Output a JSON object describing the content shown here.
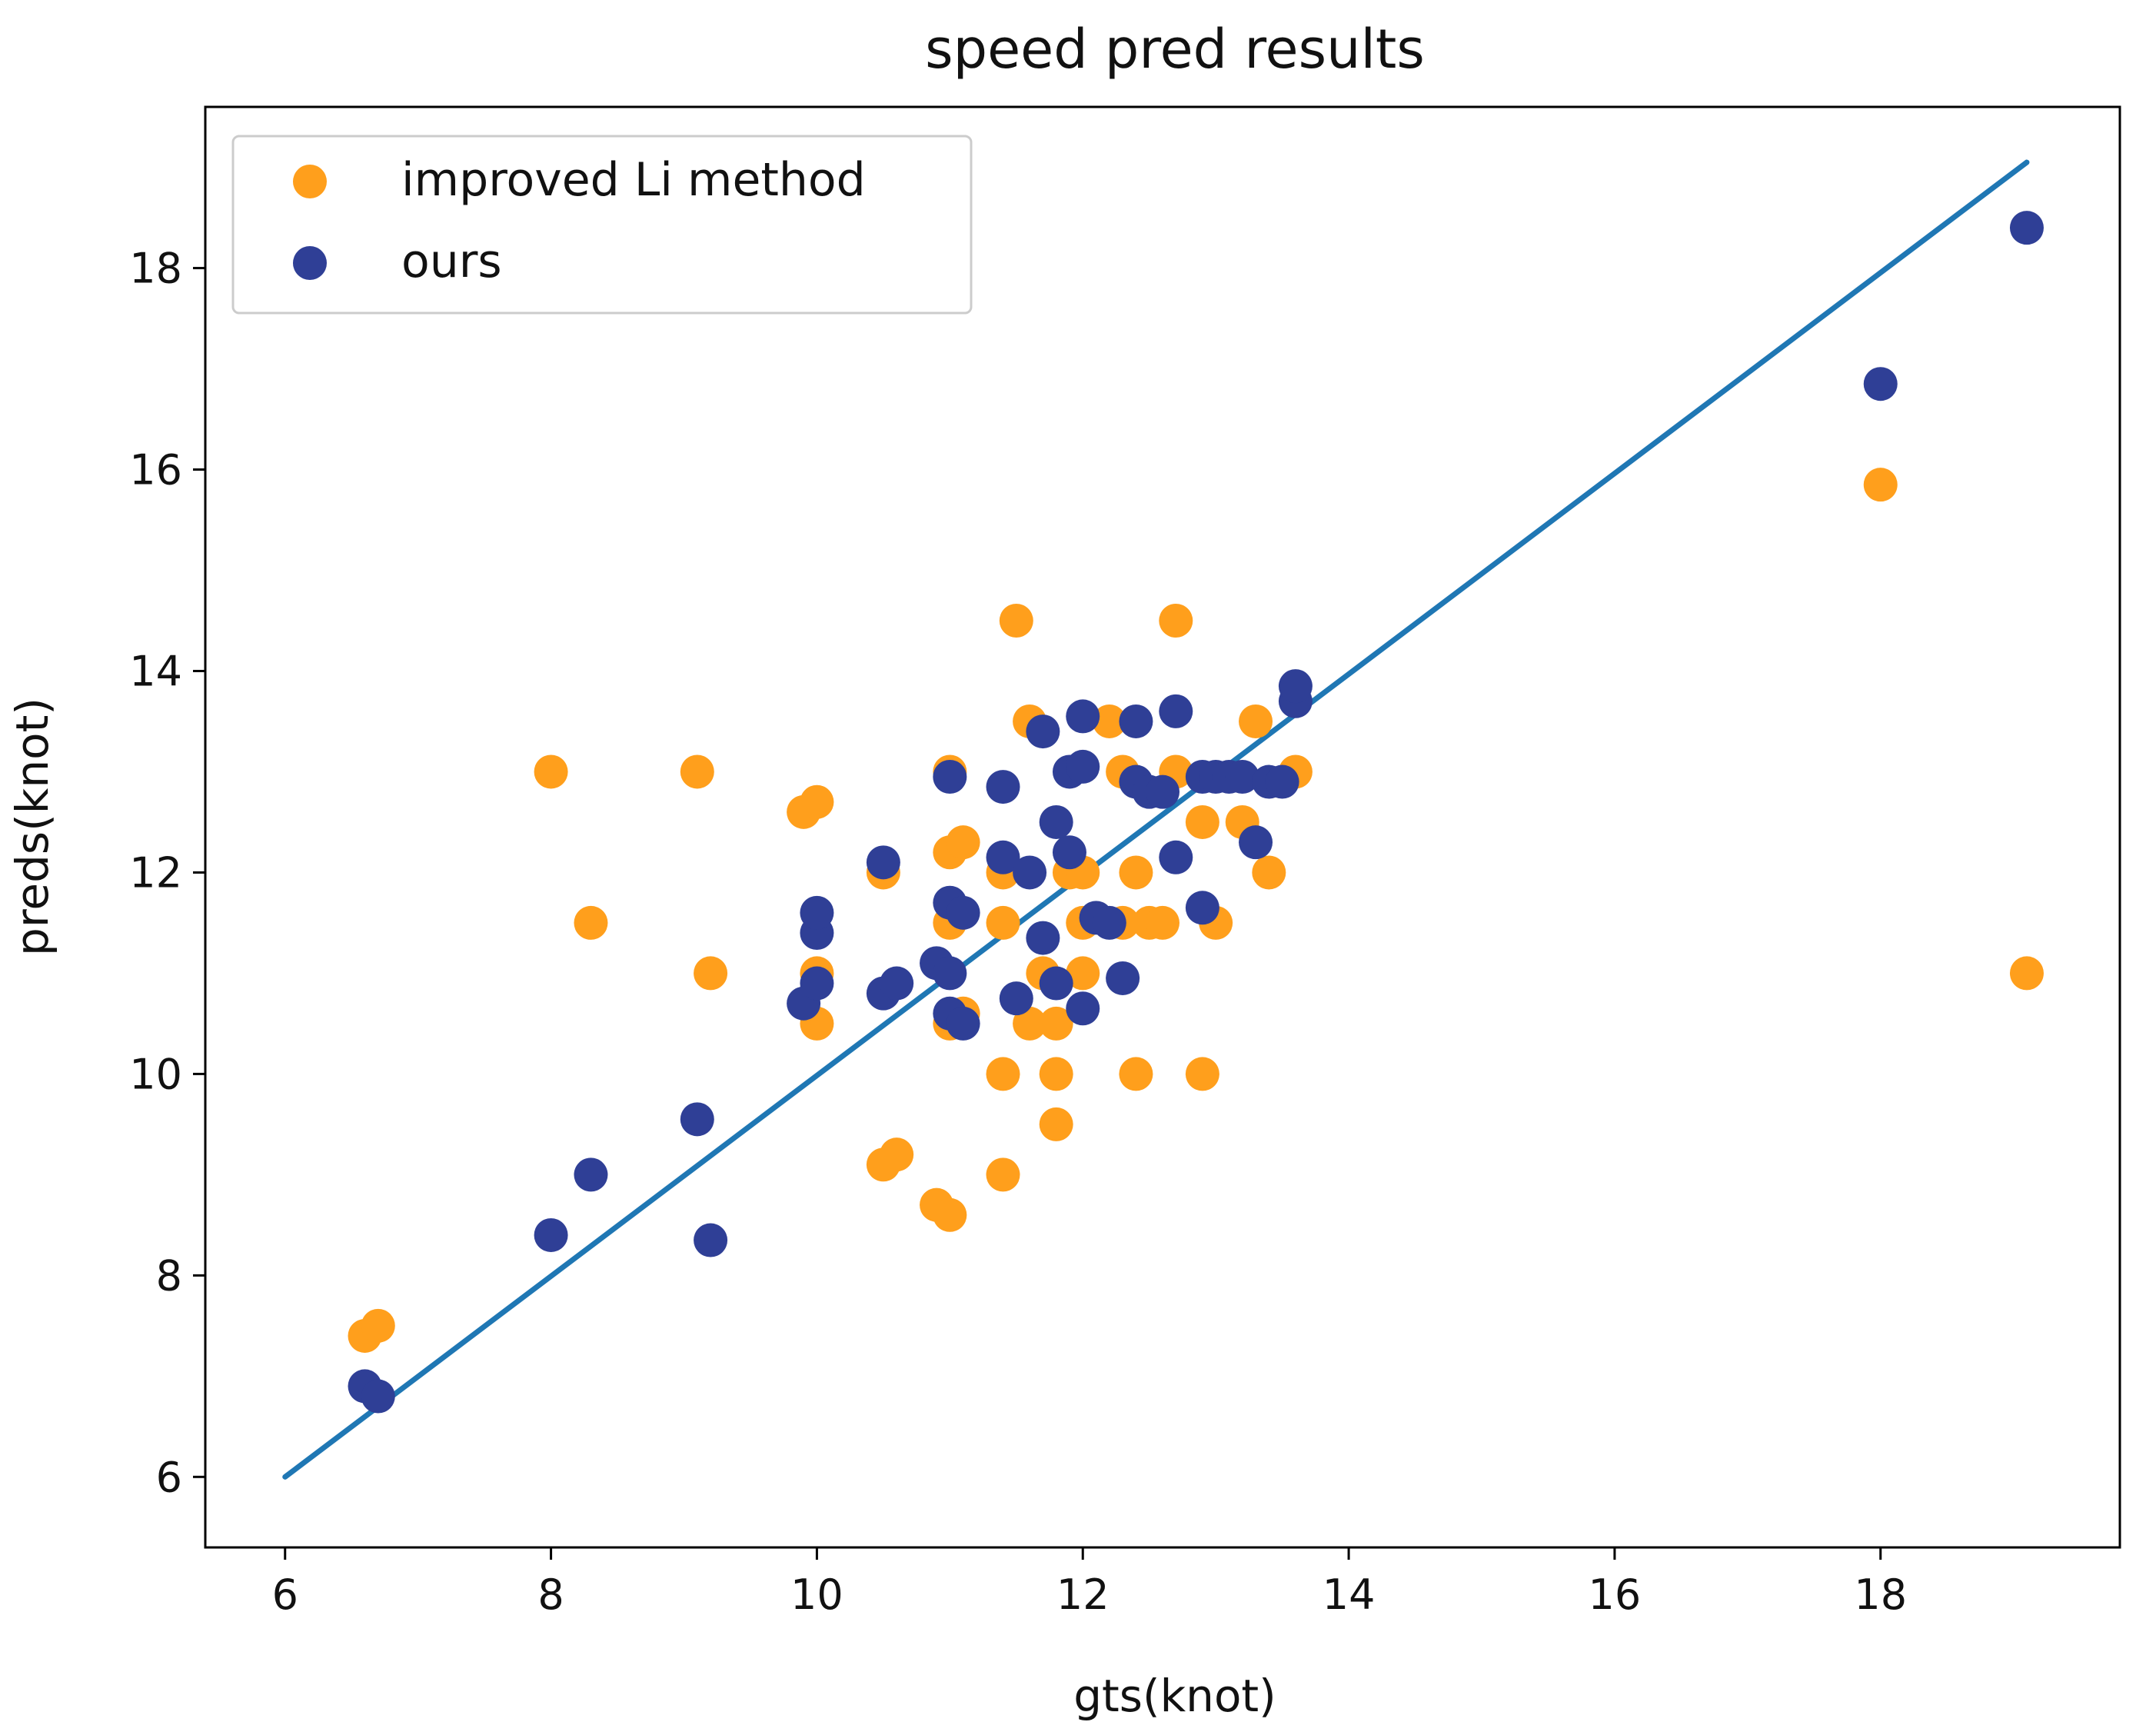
{
  "chart_data": {
    "type": "scatter",
    "title": "speed pred results",
    "xlabel": "gts(knot)",
    "ylabel": "preds(knot)",
    "xlim": [
      5.4,
      19.8
    ],
    "ylim": [
      5.3,
      19.6
    ],
    "xticks": [
      6,
      8,
      10,
      12,
      14,
      16,
      18
    ],
    "yticks": [
      6,
      8,
      10,
      12,
      14,
      16,
      18
    ],
    "grid": false,
    "legend_position": "top-left",
    "reference_line": {
      "x": [
        6,
        19.1
      ],
      "y": [
        6,
        19.05
      ],
      "color": "#1f77b4"
    },
    "series": [
      {
        "name": "improved Li method",
        "color": "#ff9f1c",
        "points": [
          [
            6.6,
            7.4
          ],
          [
            6.7,
            7.5
          ],
          [
            8.0,
            13.0
          ],
          [
            8.3,
            11.5
          ],
          [
            9.1,
            13.0
          ],
          [
            9.2,
            11.0
          ],
          [
            9.9,
            12.6
          ],
          [
            10.0,
            12.7
          ],
          [
            10.0,
            11.0
          ],
          [
            10.0,
            10.5
          ],
          [
            10.5,
            9.1
          ],
          [
            10.6,
            9.2
          ],
          [
            10.5,
            12.0
          ],
          [
            10.9,
            8.7
          ],
          [
            11.0,
            8.6
          ],
          [
            11.0,
            13.0
          ],
          [
            11.0,
            12.2
          ],
          [
            11.1,
            12.3
          ],
          [
            11.0,
            11.5
          ],
          [
            11.0,
            10.5
          ],
          [
            11.1,
            10.6
          ],
          [
            11.4,
            9.0
          ],
          [
            11.4,
            10.0
          ],
          [
            11.4,
            11.5
          ],
          [
            11.4,
            12.0
          ],
          [
            11.5,
            14.5
          ],
          [
            11.6,
            13.5
          ],
          [
            11.6,
            10.5
          ],
          [
            11.7,
            11.0
          ],
          [
            11.8,
            9.5
          ],
          [
            11.8,
            10.0
          ],
          [
            11.8,
            10.5
          ],
          [
            11.9,
            12.0
          ],
          [
            12.0,
            11.0
          ],
          [
            12.0,
            11.5
          ],
          [
            12.0,
            12.0
          ],
          [
            12.2,
            13.5
          ],
          [
            12.3,
            13.0
          ],
          [
            12.3,
            11.5
          ],
          [
            12.4,
            10.0
          ],
          [
            12.4,
            12.0
          ],
          [
            12.5,
            11.5
          ],
          [
            12.6,
            11.5
          ],
          [
            12.7,
            14.5
          ],
          [
            12.7,
            13.0
          ],
          [
            12.9,
            10.0
          ],
          [
            12.9,
            12.5
          ],
          [
            13.0,
            11.5
          ],
          [
            13.2,
            12.5
          ],
          [
            13.3,
            13.5
          ],
          [
            13.4,
            12.0
          ],
          [
            13.6,
            13.0
          ],
          [
            18.0,
            15.85
          ],
          [
            19.1,
            11.0
          ]
        ]
      },
      {
        "name": "ours",
        "color": "#2f3f96",
        "points": [
          [
            6.6,
            6.9
          ],
          [
            6.7,
            6.8
          ],
          [
            8.0,
            8.4
          ],
          [
            8.3,
            9.0
          ],
          [
            9.1,
            9.55
          ],
          [
            9.2,
            8.35
          ],
          [
            9.9,
            10.7
          ],
          [
            10.0,
            10.9
          ],
          [
            10.0,
            11.4
          ],
          [
            10.0,
            11.6
          ],
          [
            10.5,
            10.8
          ],
          [
            10.6,
            10.9
          ],
          [
            10.5,
            12.1
          ],
          [
            10.9,
            11.1
          ],
          [
            11.0,
            11.7
          ],
          [
            11.1,
            11.6
          ],
          [
            11.0,
            11.0
          ],
          [
            11.0,
            10.6
          ],
          [
            11.1,
            10.5
          ],
          [
            11.0,
            12.95
          ],
          [
            11.4,
            12.85
          ],
          [
            11.4,
            12.15
          ],
          [
            11.5,
            10.75
          ],
          [
            11.6,
            12.0
          ],
          [
            11.7,
            11.35
          ],
          [
            11.7,
            13.4
          ],
          [
            11.8,
            12.5
          ],
          [
            11.8,
            10.9
          ],
          [
            11.9,
            12.2
          ],
          [
            11.9,
            13.0
          ],
          [
            12.0,
            13.05
          ],
          [
            12.0,
            13.55
          ],
          [
            12.0,
            10.65
          ],
          [
            12.1,
            11.55
          ],
          [
            12.2,
            11.5
          ],
          [
            12.3,
            10.95
          ],
          [
            12.4,
            13.5
          ],
          [
            12.4,
            12.9
          ],
          [
            12.5,
            12.8
          ],
          [
            12.6,
            12.8
          ],
          [
            12.7,
            13.6
          ],
          [
            12.7,
            12.15
          ],
          [
            12.9,
            11.65
          ],
          [
            12.9,
            12.95
          ],
          [
            13.0,
            12.95
          ],
          [
            13.1,
            12.95
          ],
          [
            13.2,
            12.95
          ],
          [
            13.3,
            12.3
          ],
          [
            13.4,
            12.9
          ],
          [
            13.5,
            12.9
          ],
          [
            13.6,
            13.7
          ],
          [
            13.6,
            13.85
          ],
          [
            18.0,
            16.85
          ],
          [
            19.1,
            18.4
          ]
        ]
      }
    ]
  }
}
